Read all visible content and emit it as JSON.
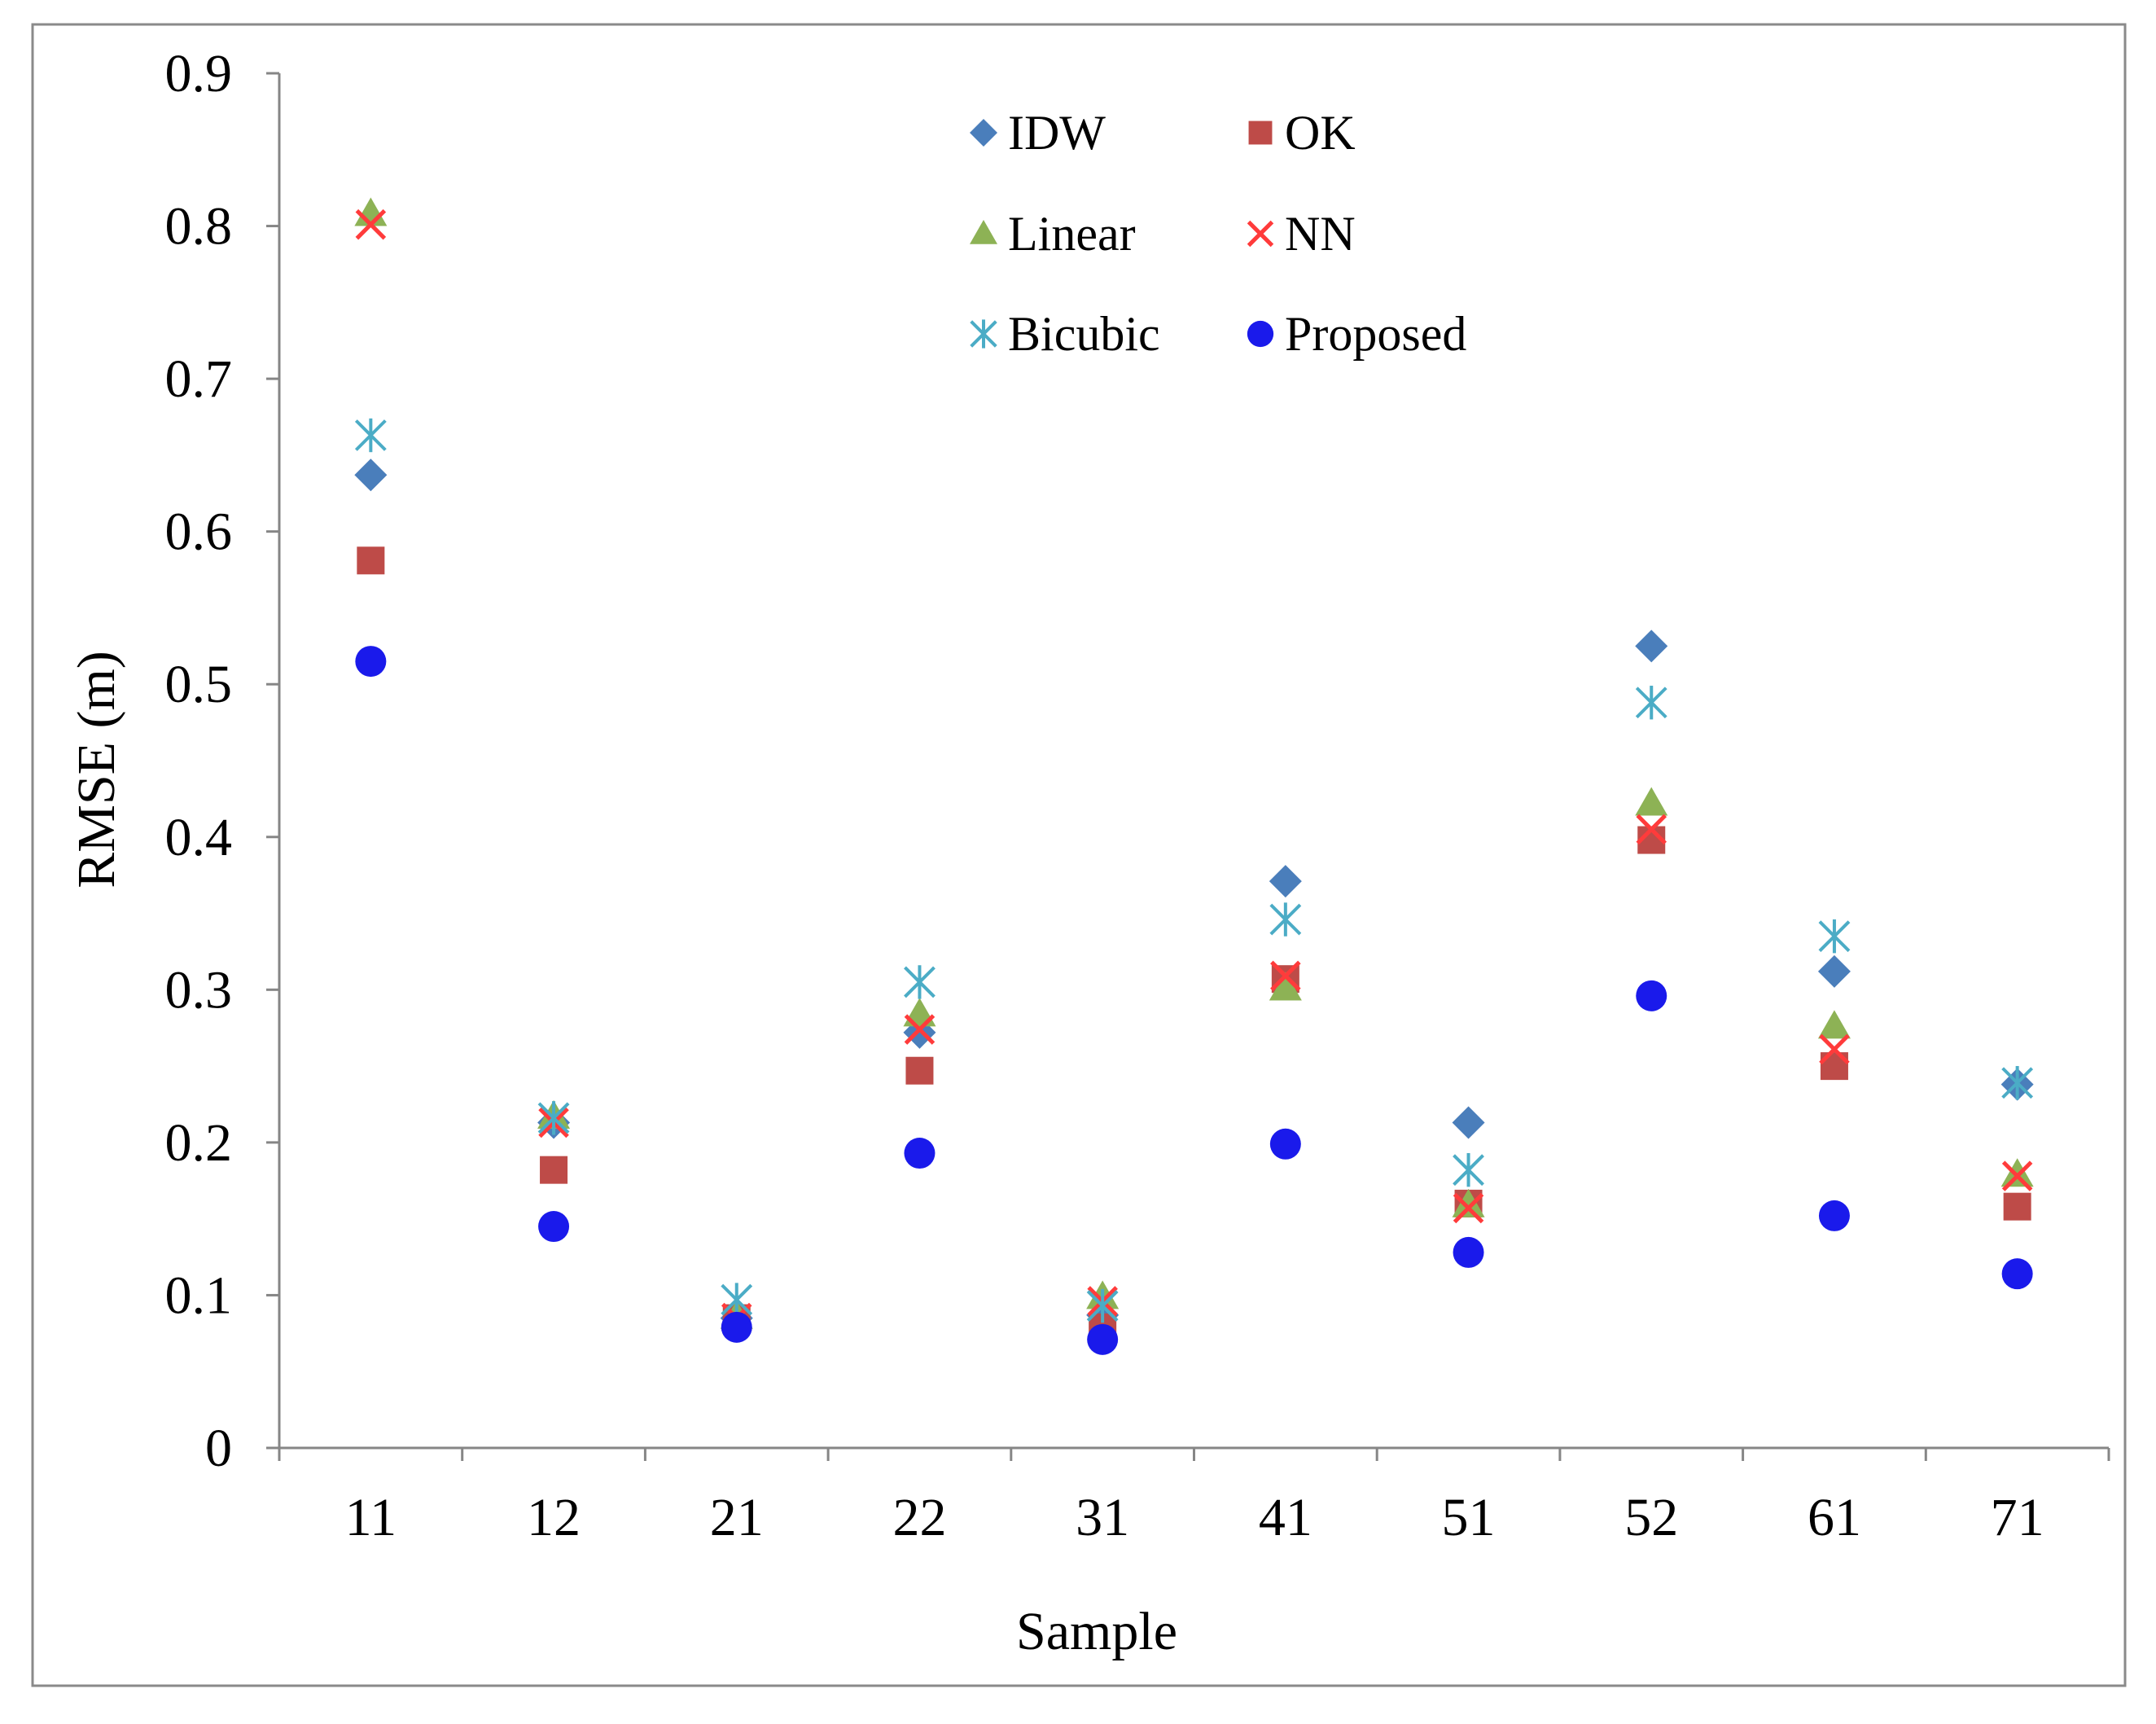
{
  "chart_data": {
    "type": "scatter",
    "title": "",
    "xlabel": "Sample",
    "ylabel": "RMSE (m)",
    "categories": [
      "11",
      "12",
      "21",
      "22",
      "31",
      "41",
      "51",
      "52",
      "61",
      "71"
    ],
    "ylim": [
      0,
      0.9
    ],
    "yticks": [
      "0",
      "0.1",
      "0.2",
      "0.3",
      "0.4",
      "0.5",
      "0.6",
      "0.7",
      "0.8",
      "0.9"
    ],
    "grid": false,
    "legend_position": "top-center",
    "series": [
      {
        "name": "IDW",
        "marker": "diamond",
        "color": "#4a7ebb",
        "values": [
          0.637,
          0.213,
          0.085,
          0.272,
          0.087,
          0.371,
          0.213,
          0.525,
          0.312,
          0.238
        ]
      },
      {
        "name": "OK",
        "marker": "square",
        "color": "#be4b48",
        "values": [
          0.581,
          0.182,
          0.085,
          0.247,
          0.079,
          0.307,
          0.16,
          0.398,
          0.25,
          0.158
        ]
      },
      {
        "name": "Linear",
        "marker": "triangle",
        "color": "#8db255",
        "values": [
          0.808,
          0.217,
          0.086,
          0.284,
          0.099,
          0.301,
          0.159,
          0.422,
          0.276,
          0.179
        ]
      },
      {
        "name": "NN",
        "marker": "x",
        "color": "#ff3b3b",
        "values": [
          0.801,
          0.213,
          0.085,
          0.274,
          0.096,
          0.309,
          0.157,
          0.405,
          0.261,
          0.178
        ]
      },
      {
        "name": "Bicubic",
        "marker": "star",
        "color": "#4bacc6",
        "values": [
          0.663,
          0.216,
          0.097,
          0.305,
          0.093,
          0.346,
          0.182,
          0.488,
          0.335,
          0.239
        ]
      },
      {
        "name": "Proposed",
        "marker": "circle",
        "color": "#1a1aeb",
        "values": [
          0.515,
          0.145,
          0.079,
          0.193,
          0.071,
          0.199,
          0.128,
          0.296,
          0.152,
          0.114
        ]
      }
    ]
  }
}
